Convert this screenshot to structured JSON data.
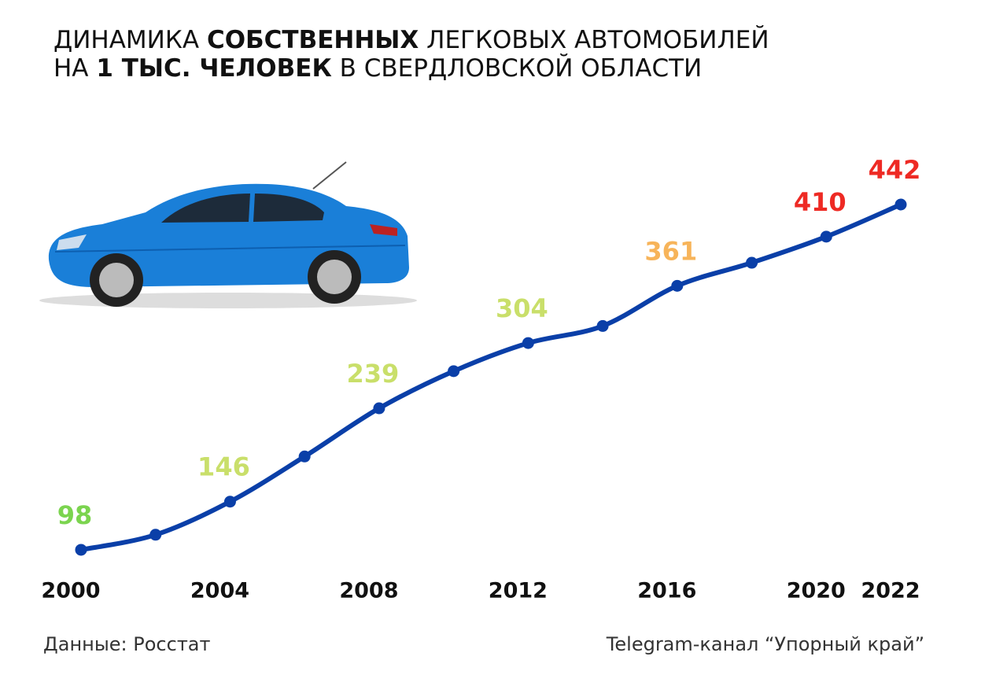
{
  "chart_data": {
    "type": "line",
    "title_lines": [
      [
        {
          "text": "ДИНАМИКА ",
          "bold": false
        },
        {
          "text": "СОБСТВЕННЫХ",
          "bold": true
        },
        {
          "text": " ЛЕГКОВЫХ АВТОМОБИЛЕЙ",
          "bold": false
        }
      ],
      [
        {
          "text": "НА ",
          "bold": false
        },
        {
          "text": "1 ТЫС.  ЧЕЛОВЕК",
          "bold": true
        },
        {
          "text": " В СВЕРДЛОВСКОЙ ОБЛАСТИ",
          "bold": false
        }
      ]
    ],
    "x": [
      2000,
      2002,
      2004,
      2006,
      2008,
      2010,
      2012,
      2014,
      2016,
      2018,
      2020,
      2022
    ],
    "series": [
      {
        "color": "#0a3fa8",
        "values": [
          98,
          113,
          146,
          191,
          239,
          276,
          304,
          321,
          361,
          384,
          410,
          442
        ],
        "value_labels": [
          98,
          null,
          146,
          null,
          239,
          null,
          304,
          null,
          361,
          null,
          410,
          442
        ],
        "value_label_colors": [
          "#7bd44f",
          null,
          "#c9df6a",
          null,
          "#c9df6a",
          null,
          "#c9df6a",
          null,
          "#f7b45a",
          null,
          "#ee2a24",
          "#ee2a24"
        ]
      }
    ],
    "xlim": [
      2000,
      2022
    ],
    "xticks": [
      2000,
      2004,
      2008,
      2012,
      2016,
      2020,
      2022
    ],
    "ylim": [
      0,
      500
    ],
    "grid": false,
    "source": "Данные: Росстат",
    "credit": "Telegram-канал “Упорный край”"
  }
}
